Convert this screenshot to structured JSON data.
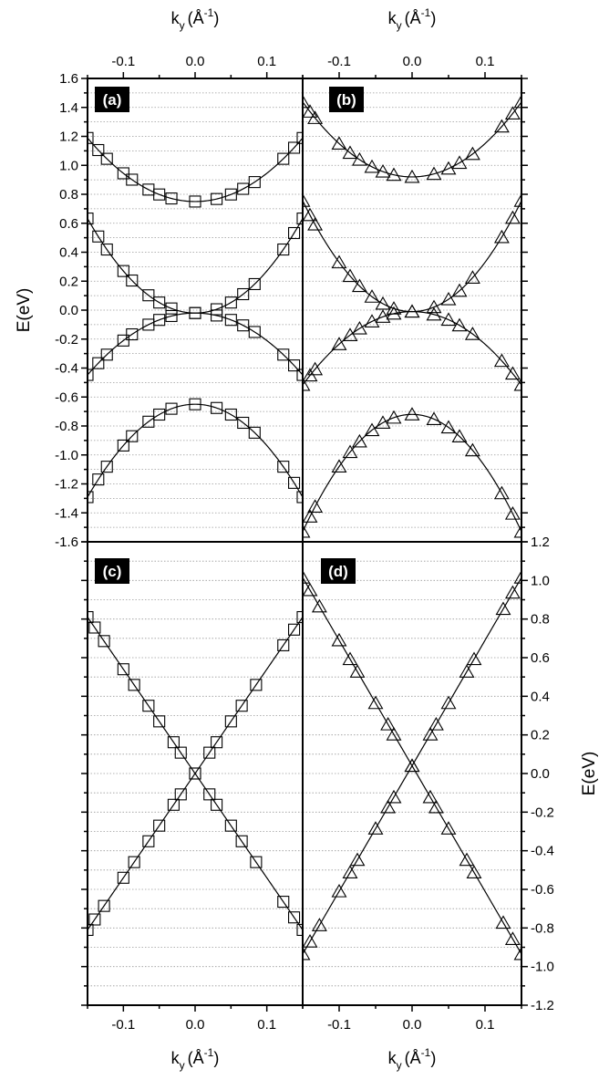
{
  "figure": {
    "top_xlabel_main": "k",
    "top_xlabel_sub": "y",
    "top_xlabel_unit": "(Å",
    "top_xlabel_exp": "-1",
    "top_xlabel_close": ")",
    "bottom_xlabel_main": "k",
    "bottom_xlabel_sub": "y",
    "bottom_xlabel_unit": "(Å",
    "bottom_xlabel_exp": "-1",
    "bottom_xlabel_close": ")",
    "left_ylabel": "E(eV)",
    "right_ylabel": "E(eV)"
  },
  "chart_data": [
    {
      "panel": "(a)",
      "type": "line",
      "marker": "square",
      "xlim": [
        -0.15,
        0.15
      ],
      "ylim": [
        -1.6,
        1.6
      ],
      "xticks": [
        -0.1,
        0.0,
        0.1
      ],
      "yticks": [
        -1.6,
        -1.4,
        -1.2,
        -1.0,
        -0.8,
        -0.6,
        -0.4,
        -0.2,
        0.0,
        0.2,
        0.4,
        0.6,
        0.8,
        1.0,
        1.2,
        1.4,
        1.6
      ],
      "ytick_labels": [
        "-1.6",
        "-1.4",
        "-1.2",
        "-1.0",
        "-0.8",
        "-0.6",
        "-0.4",
        "-0.2",
        "0.0",
        "0.2",
        "0.4",
        "0.6",
        "0.8",
        "1.0",
        "1.2",
        "1.4",
        "1.6"
      ],
      "xtick_labels": [
        "-0.1",
        "0.0",
        "0.1"
      ],
      "grid": true,
      "series": [
        {
          "kind": "parabola",
          "center": 0.75,
          "curv": 19.5
        },
        {
          "kind": "parabola",
          "center": -0.65,
          "curv": -28.5
        },
        {
          "kind": "parabola",
          "center": -0.02,
          "curv": 29.0
        },
        {
          "kind": "parabola",
          "center": -0.02,
          "curv": -19.0
        }
      ],
      "marker_x": [
        -0.15,
        -0.135,
        -0.123,
        -0.1,
        -0.088,
        -0.065,
        -0.05,
        -0.033,
        0.0,
        0.03,
        0.05,
        0.067,
        0.083,
        0.123,
        0.138,
        0.15
      ]
    },
    {
      "panel": "(b)",
      "type": "line",
      "marker": "triangle",
      "xlim": [
        -0.15,
        0.15
      ],
      "ylim": [
        -1.6,
        1.6
      ],
      "xticks": [
        -0.1,
        0.0,
        0.1
      ],
      "xtick_labels": [
        "-0.1",
        "0.0",
        "0.1"
      ],
      "grid": true,
      "series": [
        {
          "kind": "parabola",
          "center": 0.92,
          "curv": 23.0
        },
        {
          "kind": "parabola",
          "center": -0.72,
          "curv": -36.0
        },
        {
          "kind": "parabola",
          "center": -0.01,
          "curv": 34.0
        },
        {
          "kind": "parabola",
          "center": -0.01,
          "curv": -22.5
        }
      ],
      "marker_x": [
        -0.15,
        -0.14,
        -0.133,
        -0.1,
        -0.085,
        -0.072,
        -0.055,
        -0.04,
        -0.025,
        0.0,
        0.03,
        0.05,
        0.065,
        0.083,
        0.123,
        0.138,
        0.15
      ]
    },
    {
      "panel": "(c)",
      "type": "line",
      "marker": "square",
      "xlim": [
        -0.15,
        0.15
      ],
      "ylim": [
        -1.2,
        1.2
      ],
      "xticks": [
        -0.1,
        0.0,
        0.1
      ],
      "xtick_labels": [
        "-0.1",
        "0.0",
        "0.1"
      ],
      "grid": true,
      "series": [
        {
          "kind": "linear",
          "intercept": 0.0,
          "slope": 5.4
        },
        {
          "kind": "linear",
          "intercept": 0.0,
          "slope": -5.4
        }
      ],
      "marker_x": [
        -0.15,
        -0.14,
        -0.127,
        -0.1,
        -0.085,
        -0.065,
        -0.05,
        -0.03,
        -0.02,
        0.0,
        0.02,
        0.03,
        0.05,
        0.065,
        0.085,
        0.123,
        0.138,
        0.15
      ]
    },
    {
      "panel": "(d)",
      "type": "line",
      "marker": "triangle",
      "xlim": [
        -0.15,
        0.15
      ],
      "ylim": [
        -1.2,
        1.2
      ],
      "yticks": [
        -1.2,
        -1.0,
        -0.8,
        -0.6,
        -0.4,
        -0.2,
        0.0,
        0.2,
        0.4,
        0.6,
        0.8,
        1.0,
        1.2
      ],
      "ytick_labels": [
        "-1.2",
        "-1.0",
        "-0.8",
        "-0.6",
        "-0.4",
        "-0.2",
        "0.0",
        "0.2",
        "0.4",
        "0.6",
        "0.8",
        "1.0",
        "1.2"
      ],
      "xticks": [
        -0.1,
        0.0,
        0.1
      ],
      "xtick_labels": [
        "-0.1",
        "0.0",
        "0.1"
      ],
      "grid": true,
      "series": [
        {
          "kind": "linear",
          "intercept": 0.04,
          "slope": 6.5
        },
        {
          "kind": "linear",
          "intercept": 0.04,
          "slope": -6.5
        }
      ],
      "marker_x": [
        -0.15,
        -0.14,
        -0.127,
        -0.1,
        -0.085,
        -0.075,
        -0.05,
        -0.033,
        -0.025,
        0.0,
        0.025,
        0.033,
        0.05,
        0.075,
        0.085,
        0.125,
        0.138,
        0.15
      ]
    }
  ]
}
